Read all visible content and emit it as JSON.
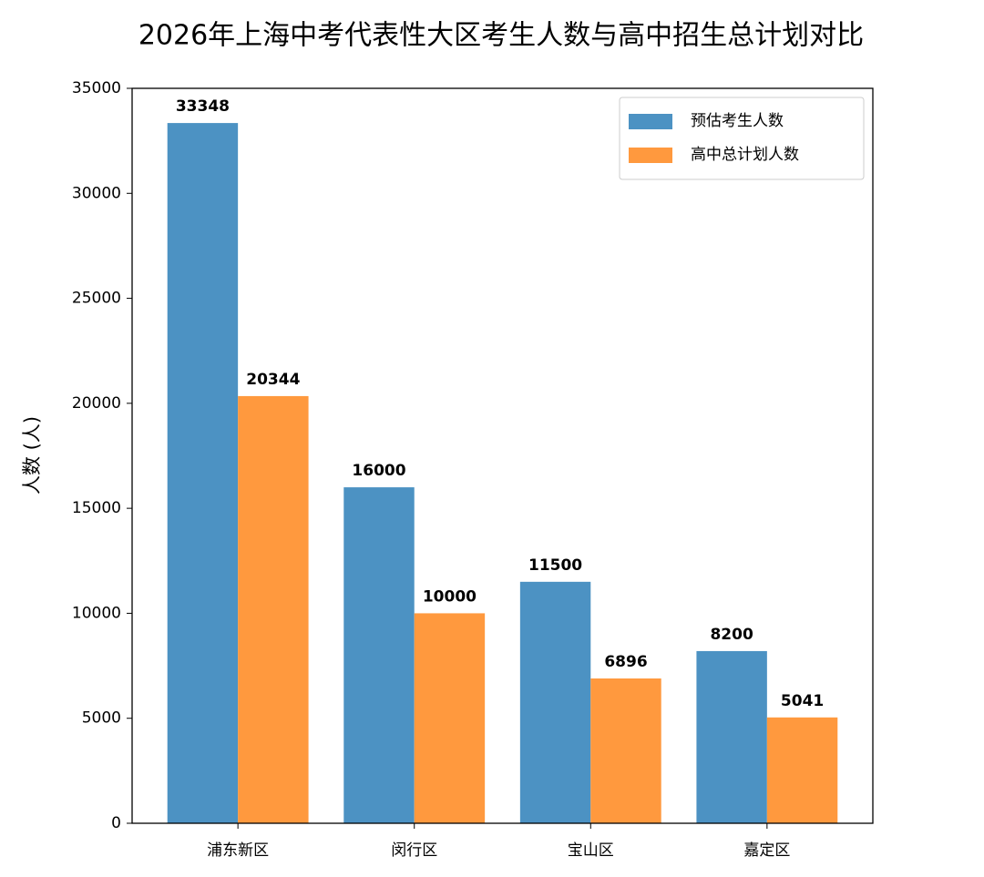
{
  "chart_data": {
    "type": "bar",
    "title": "2026年上海中考代表性大区考生人数与高中招生总计划对比",
    "y_label": "人数 (人)",
    "categories": [
      "浦东新区",
      "闵行区",
      "宝山区",
      "嘉定区"
    ],
    "series": [
      {
        "name": "预估考生人数",
        "color": "#4c92c3",
        "values": [
          33348,
          16000,
          11500,
          8200
        ]
      },
      {
        "name": "高中总计划人数",
        "color": "#ff993e",
        "values": [
          20344,
          10000,
          6896,
          5041
        ]
      }
    ],
    "ylim": [
      0,
      35000
    ],
    "yticks": [
      0,
      5000,
      10000,
      15000,
      20000,
      25000,
      30000,
      35000
    ],
    "grid": false,
    "legend": "upper-right"
  }
}
